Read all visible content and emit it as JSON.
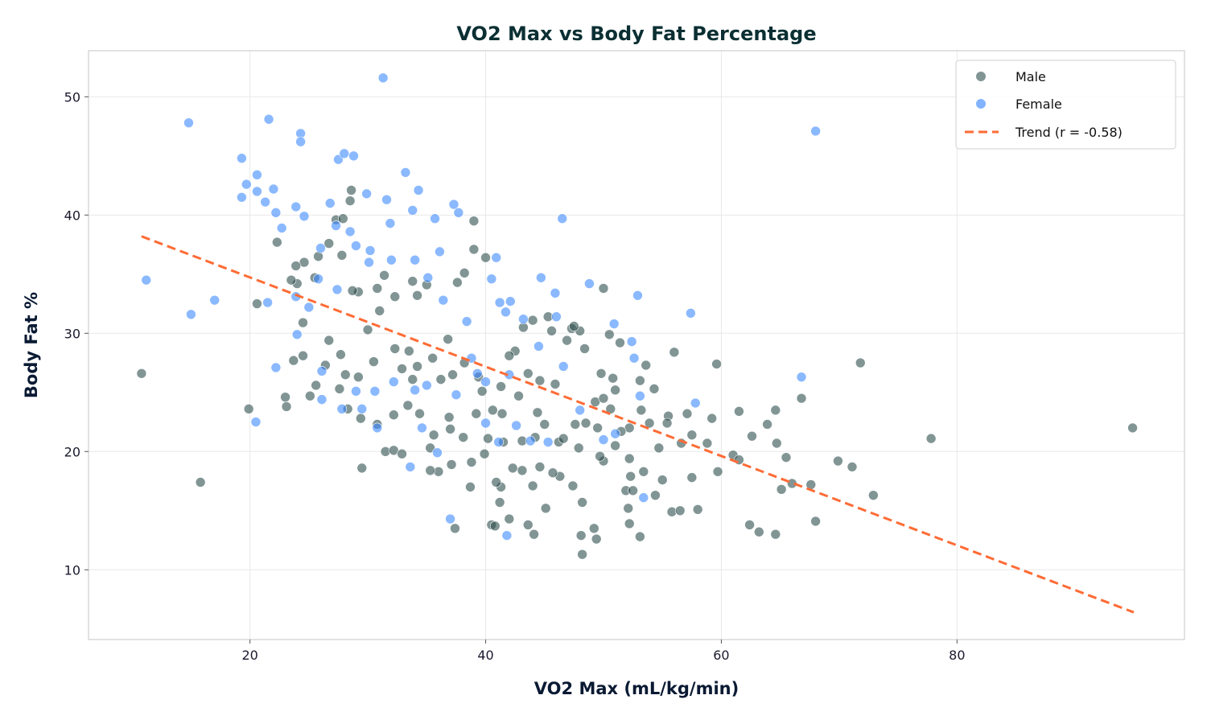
{
  "chart_data": {
    "type": "scatter",
    "title": "VO2 Max vs Body Fat Percentage",
    "xlabel": "VO2 Max (mL/kg/min)",
    "ylabel": "Body Fat %",
    "xlim": [
      6.3,
      99.3
    ],
    "ylim": [
      4.1,
      53.9
    ],
    "xticks": [
      20,
      40,
      60,
      80
    ],
    "yticks": [
      10,
      20,
      30,
      40,
      50
    ],
    "grid": true,
    "legend_position": "top-right",
    "series": [
      {
        "name": "Male",
        "color": "#2f4f4f",
        "points": [
          [
            10.8,
            26.6
          ],
          [
            15.8,
            17.4
          ],
          [
            19.9,
            23.6
          ],
          [
            20.6,
            32.5
          ],
          [
            23,
            24.6
          ],
          [
            23.1,
            23.8
          ],
          [
            22.3,
            37.7
          ],
          [
            23.7,
            27.7
          ],
          [
            24.5,
            28.1
          ],
          [
            28.6,
            42.1
          ],
          [
            28.5,
            41.2
          ],
          [
            27.3,
            39.6
          ],
          [
            27.9,
            39.7
          ],
          [
            29.5,
            18.6
          ],
          [
            31.5,
            20
          ],
          [
            32.2,
            20.1
          ],
          [
            32.9,
            19.8
          ],
          [
            37.4,
            13.5
          ],
          [
            38.7,
            17
          ],
          [
            40.5,
            13.8
          ],
          [
            40.8,
            13.7
          ],
          [
            42,
            14.3
          ],
          [
            44.1,
            13
          ],
          [
            44,
            17.1
          ],
          [
            43.6,
            13.8
          ],
          [
            48.2,
            11.3
          ],
          [
            48.1,
            12.9
          ],
          [
            49.4,
            12.6
          ],
          [
            49.2,
            13.5
          ],
          [
            48.2,
            15.7
          ],
          [
            45.1,
            15.2
          ],
          [
            41.2,
            15.7
          ],
          [
            52.1,
            15.2
          ],
          [
            53.1,
            12.8
          ],
          [
            52.2,
            13.9
          ],
          [
            55.8,
            14.9
          ],
          [
            56.5,
            15
          ],
          [
            58,
            15.1
          ],
          [
            62.4,
            13.8
          ],
          [
            63.2,
            13.2
          ],
          [
            64.6,
            13
          ],
          [
            65.1,
            16.8
          ],
          [
            66,
            17.3
          ],
          [
            67.6,
            17.2
          ],
          [
            68,
            14.1
          ],
          [
            69.9,
            19.2
          ],
          [
            71.1,
            18.7
          ],
          [
            72.9,
            16.3
          ],
          [
            71.8,
            27.5
          ],
          [
            77.8,
            21.1
          ],
          [
            94.9,
            22
          ],
          [
            66.8,
            24.5
          ],
          [
            64.6,
            23.5
          ],
          [
            63.9,
            22.3
          ],
          [
            62.6,
            21.3
          ],
          [
            61.5,
            23.4
          ],
          [
            59.6,
            27.4
          ],
          [
            56,
            28.4
          ],
          [
            59.2,
            22.8
          ],
          [
            61,
            19.7
          ],
          [
            61.5,
            19.3
          ],
          [
            65.5,
            19.5
          ],
          [
            64.7,
            20.7
          ],
          [
            58.8,
            20.7
          ],
          [
            57.5,
            21.4
          ],
          [
            59.7,
            18.3
          ],
          [
            57.5,
            17.8
          ],
          [
            55,
            17.6
          ],
          [
            54.4,
            16.3
          ],
          [
            50,
            33.8
          ],
          [
            39,
            39.5
          ],
          [
            40,
            36.4
          ],
          [
            39,
            37.1
          ],
          [
            37.6,
            34.3
          ],
          [
            38.2,
            35.1
          ],
          [
            34.2,
            33.2
          ],
          [
            35,
            34.1
          ],
          [
            33.8,
            34.4
          ],
          [
            32.3,
            33.1
          ],
          [
            31.4,
            34.9
          ],
          [
            30.8,
            33.8
          ],
          [
            29.2,
            33.5
          ],
          [
            28.7,
            33.6
          ],
          [
            26.7,
            37.6
          ],
          [
            27.8,
            36.6
          ],
          [
            24.6,
            36
          ],
          [
            23.9,
            35.7
          ],
          [
            24,
            34.2
          ],
          [
            23.5,
            34.5
          ],
          [
            25.5,
            34.7
          ],
          [
            25.8,
            36.5
          ],
          [
            26.7,
            29.4
          ],
          [
            28.1,
            26.5
          ],
          [
            27.7,
            28.2
          ],
          [
            30,
            30.3
          ],
          [
            31,
            31.9
          ],
          [
            32.3,
            28.7
          ],
          [
            33.8,
            26.1
          ],
          [
            33.5,
            28.5
          ],
          [
            35.5,
            27.9
          ],
          [
            36.8,
            29.5
          ],
          [
            38.2,
            27.5
          ],
          [
            39.7,
            25.1
          ],
          [
            41.3,
            25.5
          ],
          [
            42.5,
            28.5
          ],
          [
            43.6,
            26.6
          ],
          [
            44.6,
            26
          ],
          [
            45.9,
            25.7
          ],
          [
            46.9,
            29.4
          ],
          [
            48.4,
            28.7
          ],
          [
            47.3,
            30.4
          ],
          [
            48,
            30.2
          ],
          [
            49.8,
            26.6
          ],
          [
            50.8,
            26.2
          ],
          [
            51.4,
            29.2
          ],
          [
            53.1,
            26
          ],
          [
            53.6,
            27.3
          ],
          [
            54.3,
            25.3
          ],
          [
            55.5,
            23
          ],
          [
            57.1,
            23.2
          ],
          [
            56.6,
            20.7
          ],
          [
            53.9,
            22.4
          ],
          [
            52.2,
            22
          ],
          [
            51,
            20.5
          ],
          [
            50,
            19.2
          ],
          [
            49.5,
            22
          ],
          [
            47.9,
            20.3
          ],
          [
            46.2,
            20.8
          ],
          [
            45,
            22.3
          ],
          [
            44.4,
            23.3
          ],
          [
            42.8,
            24.7
          ],
          [
            41.4,
            23.2
          ],
          [
            40.6,
            23.5
          ],
          [
            39.2,
            23.2
          ],
          [
            37,
            21.9
          ],
          [
            35.6,
            21.4
          ],
          [
            34.4,
            23.2
          ],
          [
            33.4,
            23.9
          ],
          [
            32.2,
            23.1
          ],
          [
            30.8,
            22.3
          ],
          [
            29.4,
            22.8
          ],
          [
            28.3,
            23.6
          ],
          [
            27.6,
            25.3
          ],
          [
            25.6,
            25.6
          ],
          [
            25.1,
            24.7
          ],
          [
            24.5,
            30.9
          ],
          [
            26.4,
            27.3
          ],
          [
            29.2,
            26.3
          ],
          [
            30.5,
            27.6
          ],
          [
            32.9,
            27
          ],
          [
            34.2,
            27.2
          ],
          [
            36.2,
            26.1
          ],
          [
            37.2,
            26.5
          ],
          [
            39.4,
            26.3
          ],
          [
            42,
            28.1
          ],
          [
            43.2,
            30.5
          ],
          [
            44,
            31.1
          ],
          [
            45.3,
            31.4
          ],
          [
            45.6,
            30.2
          ],
          [
            47.5,
            30.6
          ],
          [
            50.5,
            29.9
          ],
          [
            51,
            25.2
          ],
          [
            52.2,
            19.4
          ],
          [
            53.4,
            18.3
          ],
          [
            54.7,
            20.3
          ],
          [
            52.3,
            17.9
          ],
          [
            51.9,
            16.7
          ],
          [
            52.5,
            16.7
          ],
          [
            49.7,
            19.6
          ],
          [
            47.4,
            17.1
          ],
          [
            46.3,
            17.9
          ],
          [
            45.7,
            18.2
          ],
          [
            44.6,
            18.7
          ],
          [
            43.1,
            18.4
          ],
          [
            42.3,
            18.6
          ],
          [
            41.3,
            17
          ],
          [
            40.9,
            17.4
          ],
          [
            39.9,
            19.8
          ],
          [
            38.8,
            19.1
          ],
          [
            37.1,
            18.9
          ],
          [
            36,
            18.3
          ],
          [
            35.3,
            18.4
          ],
          [
            35.3,
            20.3
          ],
          [
            36.9,
            22.9
          ],
          [
            38.1,
            21.2
          ],
          [
            40.2,
            21.1
          ],
          [
            41.5,
            20.8
          ],
          [
            43.1,
            20.9
          ],
          [
            44.2,
            21.2
          ],
          [
            46.6,
            21.1
          ],
          [
            47.6,
            22.3
          ],
          [
            48.5,
            22.4
          ],
          [
            49.3,
            24.2
          ],
          [
            50,
            24.5
          ],
          [
            50.6,
            23.6
          ],
          [
            51.5,
            21.7
          ],
          [
            53.2,
            23.5
          ],
          [
            55.4,
            22.4
          ]
        ]
      },
      {
        "name": "Female",
        "color": "#3d8bff",
        "points": [
          [
            31.3,
            51.6
          ],
          [
            14.8,
            47.8
          ],
          [
            21.6,
            48.1
          ],
          [
            68,
            47.1
          ],
          [
            24.3,
            46.9
          ],
          [
            24.3,
            46.2
          ],
          [
            19.3,
            44.8
          ],
          [
            27.5,
            44.7
          ],
          [
            28,
            45.2
          ],
          [
            28.8,
            45
          ],
          [
            33.2,
            43.6
          ],
          [
            20.6,
            43.4
          ],
          [
            19.7,
            42.6
          ],
          [
            22,
            42.2
          ],
          [
            34.3,
            42.1
          ],
          [
            29.9,
            41.8
          ],
          [
            11.2,
            34.5
          ],
          [
            15,
            31.6
          ],
          [
            17,
            32.8
          ],
          [
            21.5,
            32.6
          ],
          [
            20.5,
            22.5
          ],
          [
            37,
            14.3
          ],
          [
            41.8,
            12.9
          ],
          [
            53.4,
            16.1
          ],
          [
            46.5,
            39.7
          ],
          [
            57.4,
            31.7
          ],
          [
            66.8,
            26.3
          ],
          [
            52.9,
            33.2
          ],
          [
            48.8,
            34.2
          ],
          [
            45.9,
            33.4
          ],
          [
            44.7,
            34.7
          ],
          [
            40.9,
            36.4
          ],
          [
            37.3,
            40.9
          ],
          [
            37.7,
            40.2
          ],
          [
            35.7,
            39.7
          ],
          [
            33.8,
            40.4
          ],
          [
            31.6,
            41.3
          ],
          [
            31.9,
            39.3
          ],
          [
            23.9,
            40.7
          ],
          [
            24.6,
            39.9
          ],
          [
            22.7,
            38.9
          ],
          [
            26.8,
            41
          ],
          [
            27.3,
            39.1
          ],
          [
            28.5,
            38.6
          ],
          [
            29,
            37.4
          ],
          [
            26,
            37.2
          ],
          [
            25.8,
            34.6
          ],
          [
            27.4,
            33.7
          ],
          [
            30.1,
            36
          ],
          [
            30.2,
            37
          ],
          [
            32,
            36.2
          ],
          [
            34,
            36.2
          ],
          [
            35.1,
            34.7
          ],
          [
            36.1,
            36.9
          ],
          [
            36.4,
            32.8
          ],
          [
            38.4,
            31
          ],
          [
            40.5,
            34.6
          ],
          [
            41.2,
            32.6
          ],
          [
            42.1,
            32.7
          ],
          [
            41.7,
            31.8
          ],
          [
            43.2,
            31.2
          ],
          [
            46,
            31.4
          ],
          [
            50.9,
            30.8
          ],
          [
            52.4,
            29.3
          ],
          [
            52.6,
            27.9
          ],
          [
            46.6,
            27.2
          ],
          [
            44.5,
            28.9
          ],
          [
            42,
            26.5
          ],
          [
            39.3,
            26.6
          ],
          [
            38.8,
            27.9
          ],
          [
            40,
            25.9
          ],
          [
            37.5,
            24.8
          ],
          [
            35,
            25.6
          ],
          [
            34,
            25.2
          ],
          [
            32.2,
            25.9
          ],
          [
            30.6,
            25.1
          ],
          [
            29,
            25.1
          ],
          [
            26.1,
            26.8
          ],
          [
            26.1,
            24.4
          ],
          [
            24,
            29.9
          ],
          [
            22.2,
            27.1
          ],
          [
            27.8,
            23.6
          ],
          [
            30.8,
            22
          ],
          [
            33.6,
            18.7
          ],
          [
            35.9,
            19.9
          ],
          [
            34.6,
            22
          ],
          [
            40,
            22.4
          ],
          [
            41.1,
            20.8
          ],
          [
            42.6,
            22.2
          ],
          [
            43.8,
            20.9
          ],
          [
            45.3,
            20.8
          ],
          [
            48,
            23.5
          ],
          [
            50,
            21
          ],
          [
            51,
            21.5
          ],
          [
            53.1,
            24.7
          ],
          [
            57.8,
            24.1
          ],
          [
            29.5,
            23.6
          ],
          [
            25,
            32.2
          ],
          [
            23.9,
            33.1
          ],
          [
            19.3,
            41.5
          ],
          [
            20.6,
            42
          ],
          [
            21.3,
            41.1
          ],
          [
            22.2,
            40.2
          ]
        ]
      }
    ],
    "trend": {
      "name": "Trend (r = -0.58)",
      "color": "#ff6b35",
      "x": [
        10.8,
        95
      ],
      "y": [
        38.2,
        6.4
      ]
    }
  }
}
